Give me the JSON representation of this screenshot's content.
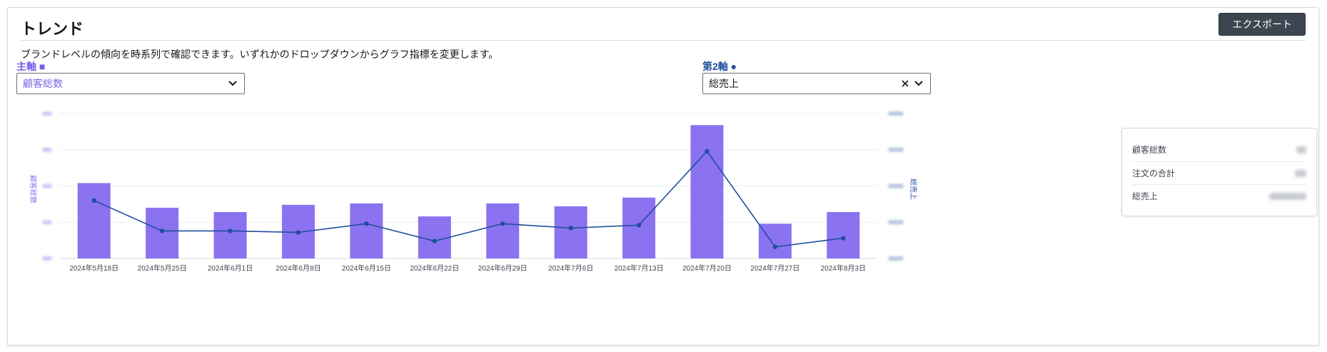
{
  "header": {
    "title": "トレンド",
    "export_label": "エクスポート",
    "description": "ブランドレベルの傾向を時系列で確認できます。いずれかのドロップダウンからグラフ指標を変更します。"
  },
  "primary_axis": {
    "label": "主軸 ■",
    "selected": "顧客総数",
    "color": "#8b72f0"
  },
  "secondary_axis": {
    "label": "第2軸 ●",
    "selected": "総売上",
    "color": "#1e4f9c"
  },
  "summary": {
    "rows": [
      {
        "label": "顧客総数"
      },
      {
        "label": "注文の合計"
      },
      {
        "label": "総売上"
      }
    ]
  },
  "chart_data": {
    "type": "bar",
    "categories": [
      "2024年5月18日",
      "2024年5月25日",
      "2024年6月1日",
      "2024年6月8日",
      "2024年6月15日",
      "2024年6月22日",
      "2024年6月29日",
      "2024年7月6日",
      "2024年7月13日",
      "2024年7月20日",
      "2024年7月27日",
      "2024年8月3日"
    ],
    "ylabel": "顧客総数",
    "y2label": "総売上",
    "ylim": [
      0,
      100
    ],
    "y2lim": [
      0,
      100
    ],
    "grid": true,
    "series": [
      {
        "type": "bar",
        "axis": "primary",
        "values": [
          52,
          35,
          32,
          37,
          38,
          29,
          38,
          36,
          42,
          92,
          24,
          32
        ]
      },
      {
        "type": "line",
        "axis": "secondary",
        "values": [
          40,
          19,
          19,
          18,
          24,
          12,
          24,
          21,
          23,
          74,
          8,
          14
        ]
      }
    ]
  }
}
